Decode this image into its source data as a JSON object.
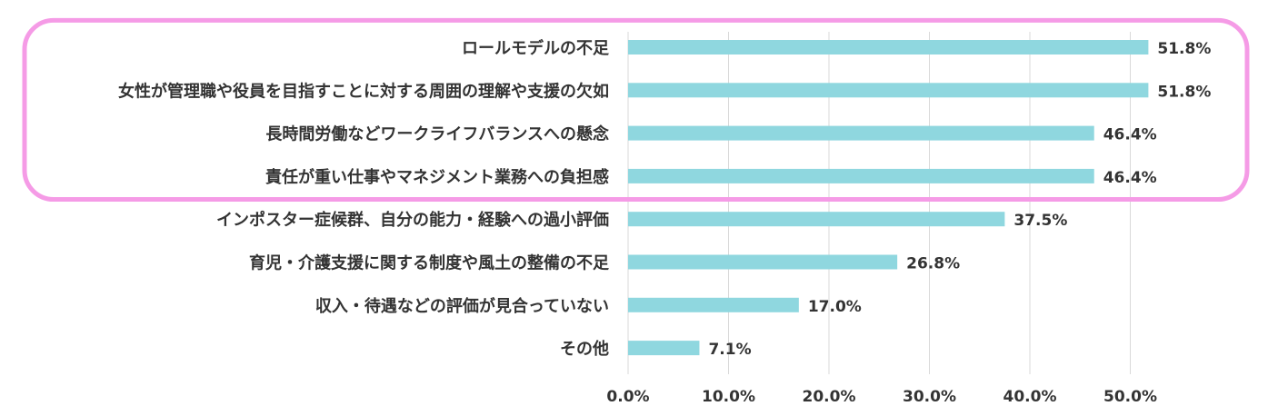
{
  "chart_data": {
    "type": "bar",
    "orientation": "horizontal",
    "title": "",
    "xlabel": "",
    "ylabel": "",
    "categories": [
      "ロールモデルの不足",
      "女性が管理職や役員を目指すことに対する周囲の理解や支援の欠如",
      "長時間労働などワークライフバランスへの懸念",
      "責任が重い仕事やマネジメント業務への負担感",
      "インポスター症候群、自分の能力・経験への過小評価",
      "育児・介護支援に関する制度や風土の整備の不足",
      "収入・待遇などの評価が見合っていない",
      "その他"
    ],
    "values": [
      51.8,
      51.8,
      46.4,
      46.4,
      37.5,
      26.8,
      17.0,
      7.1
    ],
    "value_labels": [
      "51.8%",
      "51.8%",
      "46.4%",
      "46.4%",
      "37.5%",
      "26.8%",
      "17.0%",
      "7.1%"
    ],
    "xlim": [
      0,
      60
    ],
    "xticks": [
      0,
      10,
      20,
      30,
      40,
      50
    ],
    "xtick_labels": [
      "0.0%",
      "10.0%",
      "20.0%",
      "30.0%",
      "40.0%",
      "50.0%"
    ],
    "grid": true,
    "highlight_top_n": 4,
    "colors": {
      "bar": "#8fd7df",
      "highlight_border": "#f59be6",
      "grid": "#d9d9d9",
      "text": "#333333"
    }
  }
}
